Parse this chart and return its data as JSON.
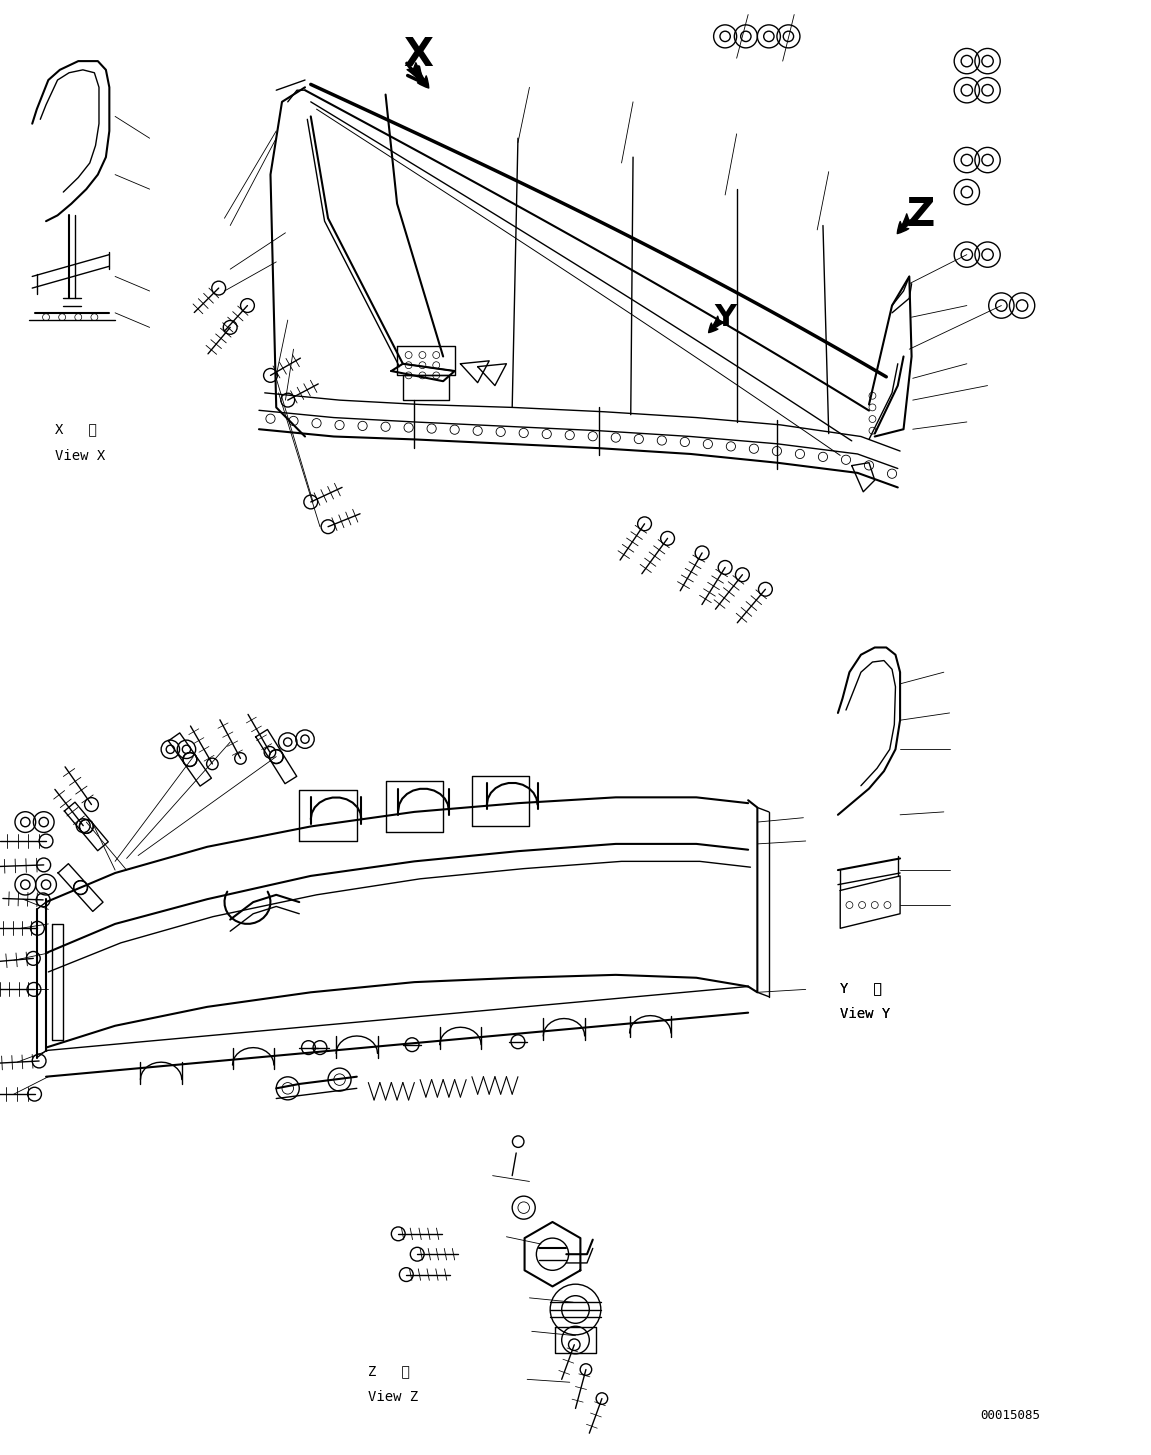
{
  "background_color": "#ffffff",
  "line_color": "#000000",
  "figsize": [
    11.51,
    14.55
  ],
  "dpi": 100,
  "labels": {
    "view_x_kanji": "X   観",
    "view_x_eng": "View X",
    "view_y_kanji": "Y   観",
    "view_y_eng": "View Y",
    "view_z_kanji": "Z   観",
    "view_z_eng": "View Z",
    "label_x": "X",
    "label_y": "Y",
    "label_z": "Z",
    "part_number": "00015085"
  }
}
